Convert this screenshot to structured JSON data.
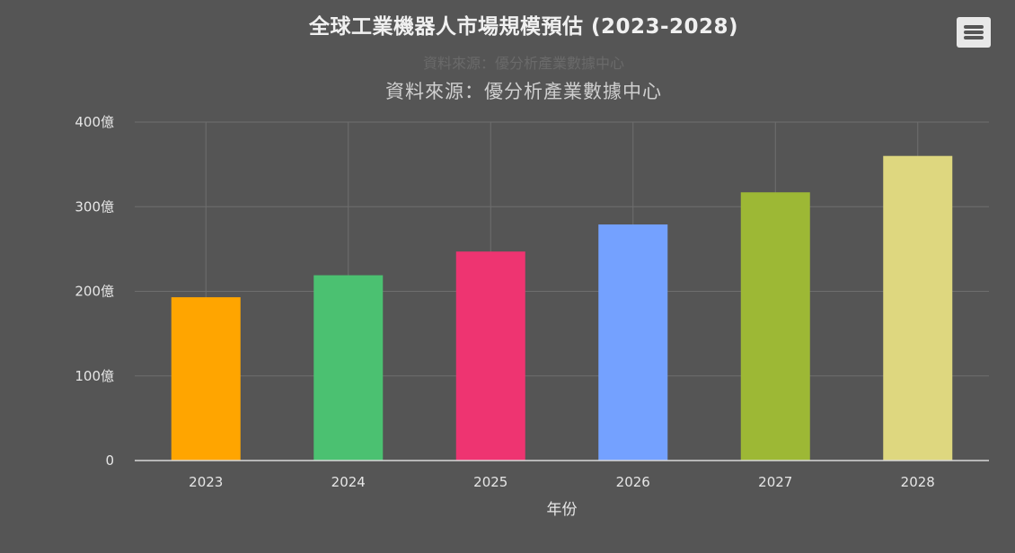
{
  "header": {
    "title": "全球工業機器人市場規模預估 (2023-2028)",
    "ghost_subtitle": "資料來源：優分析產業數據中心",
    "subtitle": "資料來源：優分析產業數據中心",
    "menu_icon": "hamburger-menu-icon"
  },
  "chart_data": {
    "type": "bar",
    "title": "全球工業機器人市場規模預估 (2023-2028)",
    "subtitle": "資料來源：優分析產業數據中心",
    "xlabel": "年份",
    "ylabel": "",
    "categories": [
      "2023",
      "2024",
      "2025",
      "2026",
      "2027",
      "2028"
    ],
    "values": [
      193,
      219,
      247,
      279,
      317,
      360
    ],
    "colors": [
      "#FFA500",
      "#4BC171",
      "#EE3471",
      "#74A1FF",
      "#9DB835",
      "#DED77F"
    ],
    "ylim": [
      0,
      400
    ],
    "yticks": [
      {
        "value": 0,
        "label": "0"
      },
      {
        "value": 100,
        "label": "100億"
      },
      {
        "value": 200,
        "label": "200億"
      },
      {
        "value": 300,
        "label": "300億"
      },
      {
        "value": 400,
        "label": "400億"
      }
    ],
    "grid": true,
    "legend": "none"
  },
  "colors": {
    "background": "#555555",
    "gridline": "#6e6e6e",
    "axis": "#d8d8d8",
    "text": "#e6e6e6"
  }
}
